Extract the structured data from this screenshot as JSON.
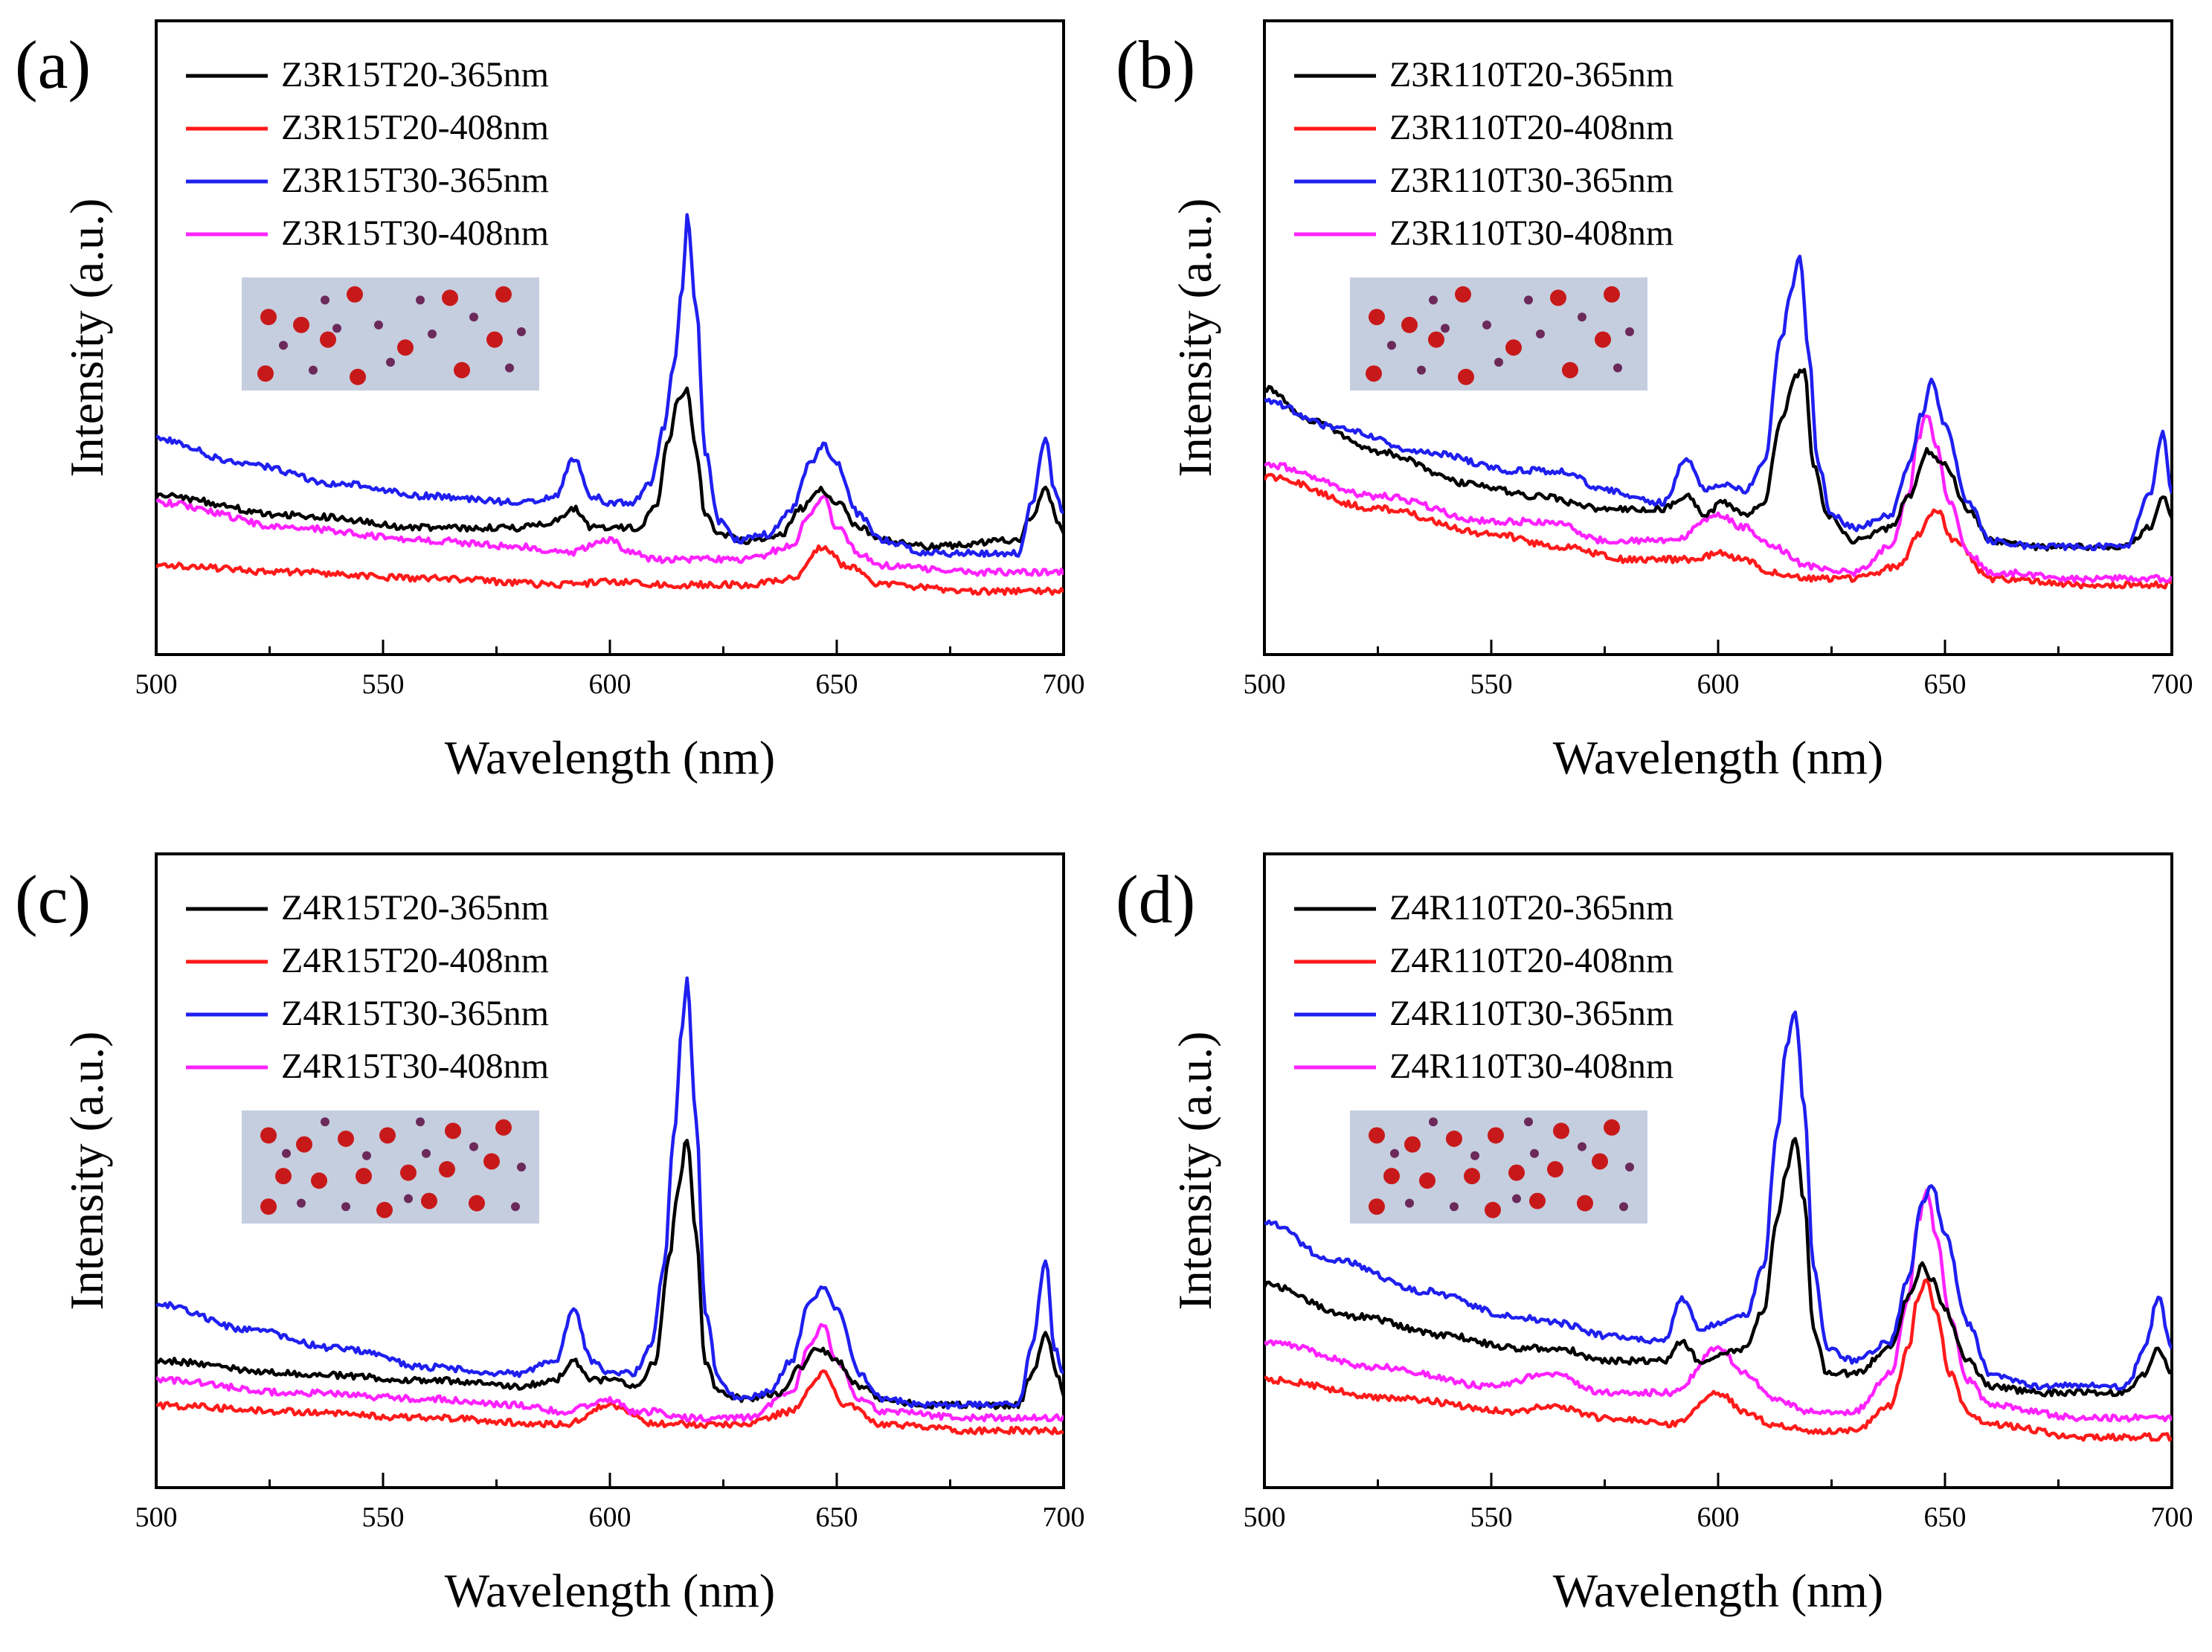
{
  "colors": {
    "black": "#000000",
    "red": "#ff1a1a",
    "blue": "#1f1ff0",
    "magenta": "#ff22ff",
    "inset_bg": "#c5cedf",
    "big_dot": "#c8191a",
    "small_dot": "#6b2a5a"
  },
  "chart_data": [
    {
      "type": "line",
      "panel_label": "(a)",
      "xlabel": "Wavelength (nm)",
      "ylabel": "Intensity (a.u.)",
      "xlim": [
        500,
        700
      ],
      "ylim": [
        0,
        1
      ],
      "xticks": [
        "500",
        "550",
        "600",
        "650",
        "700"
      ],
      "grid": false,
      "legend_position": "top-left",
      "inset": "particle schematic (sparse large particles)",
      "series": [
        {
          "name": "Z3R15T20-365nm",
          "color": "black",
          "x": [
            500,
            530,
            560,
            580,
            588,
            592,
            596,
            600,
            606,
            610,
            613,
            615,
            617,
            619,
            621,
            624,
            630,
            638,
            642,
            646,
            650,
            655,
            660,
            670,
            690,
            693,
            696,
            699,
            700
          ],
          "y": [
            0.25,
            0.22,
            0.2,
            0.2,
            0.21,
            0.23,
            0.2,
            0.2,
            0.2,
            0.23,
            0.34,
            0.4,
            0.42,
            0.32,
            0.22,
            0.19,
            0.18,
            0.19,
            0.23,
            0.26,
            0.24,
            0.2,
            0.18,
            0.17,
            0.18,
            0.22,
            0.26,
            0.21,
            0.19
          ]
        },
        {
          "name": "Z3R15T20-408nm",
          "color": "red",
          "x": [
            500,
            530,
            560,
            590,
            600,
            610,
            617,
            630,
            640,
            647,
            652,
            660,
            680,
            700
          ],
          "y": [
            0.14,
            0.13,
            0.12,
            0.11,
            0.115,
            0.11,
            0.11,
            0.11,
            0.12,
            0.17,
            0.14,
            0.11,
            0.1,
            0.1
          ]
        },
        {
          "name": "Z3R15T30-365nm",
          "color": "blue",
          "x": [
            500,
            520,
            540,
            560,
            580,
            588,
            592,
            596,
            600,
            605,
            609,
            612,
            614,
            616,
            617,
            619,
            621,
            624,
            628,
            635,
            640,
            644,
            647,
            650,
            655,
            660,
            670,
            690,
            693,
            696,
            698,
            700
          ],
          "y": [
            0.34,
            0.3,
            0.27,
            0.25,
            0.24,
            0.25,
            0.31,
            0.25,
            0.24,
            0.24,
            0.27,
            0.36,
            0.45,
            0.58,
            0.69,
            0.55,
            0.32,
            0.21,
            0.18,
            0.19,
            0.23,
            0.3,
            0.33,
            0.3,
            0.22,
            0.18,
            0.16,
            0.16,
            0.24,
            0.34,
            0.26,
            0.22
          ]
        },
        {
          "name": "Z3R15T30-408nm",
          "color": "magenta",
          "x": [
            500,
            530,
            560,
            580,
            590,
            600,
            605,
            610,
            617,
            630,
            640,
            644,
            647,
            650,
            655,
            660,
            680,
            700
          ],
          "y": [
            0.24,
            0.2,
            0.18,
            0.17,
            0.16,
            0.18,
            0.16,
            0.15,
            0.15,
            0.15,
            0.17,
            0.22,
            0.25,
            0.2,
            0.16,
            0.14,
            0.13,
            0.13
          ]
        }
      ]
    },
    {
      "type": "line",
      "panel_label": "(b)",
      "xlabel": "Wavelength (nm)",
      "ylabel": "Intensity (a.u.)",
      "xlim": [
        500,
        700
      ],
      "ylim": [
        0,
        1
      ],
      "xticks": [
        "500",
        "550",
        "600",
        "650",
        "700"
      ],
      "grid": false,
      "legend_position": "top-left",
      "inset": "particle schematic (sparse large particles)",
      "series": [
        {
          "name": "Z3R110T20-365nm",
          "color": "black",
          "x": [
            500,
            510,
            525,
            545,
            560,
            575,
            588,
            593,
            597,
            601,
            606,
            610,
            614,
            617,
            619,
            621,
            624,
            630,
            638,
            642,
            646,
            650,
            655,
            660,
            670,
            690,
            695,
            698,
            700
          ],
          "y": [
            0.42,
            0.37,
            0.32,
            0.27,
            0.25,
            0.23,
            0.23,
            0.25,
            0.22,
            0.24,
            0.22,
            0.24,
            0.37,
            0.44,
            0.45,
            0.3,
            0.22,
            0.18,
            0.2,
            0.25,
            0.32,
            0.3,
            0.23,
            0.18,
            0.17,
            0.17,
            0.2,
            0.25,
            0.22
          ]
        },
        {
          "name": "Z3R110T20-408nm",
          "color": "red",
          "x": [
            500,
            525,
            550,
            565,
            580,
            595,
            600,
            606,
            612,
            620,
            630,
            640,
            644,
            648,
            652,
            660,
            680,
            700
          ],
          "y": [
            0.28,
            0.23,
            0.19,
            0.17,
            0.15,
            0.15,
            0.16,
            0.15,
            0.13,
            0.12,
            0.12,
            0.14,
            0.19,
            0.23,
            0.18,
            0.12,
            0.11,
            0.11
          ]
        },
        {
          "name": "Z3R110T30-365nm",
          "color": "blue",
          "x": [
            500,
            515,
            535,
            555,
            565,
            575,
            588,
            593,
            597,
            601,
            606,
            610,
            614,
            616,
            618,
            620,
            622,
            625,
            630,
            638,
            642,
            645,
            647,
            650,
            655,
            660,
            670,
            690,
            695,
            698,
            700
          ],
          "y": [
            0.4,
            0.36,
            0.32,
            0.29,
            0.29,
            0.26,
            0.24,
            0.31,
            0.26,
            0.27,
            0.26,
            0.3,
            0.5,
            0.57,
            0.63,
            0.47,
            0.3,
            0.22,
            0.2,
            0.22,
            0.3,
            0.38,
            0.43,
            0.36,
            0.24,
            0.18,
            0.17,
            0.17,
            0.25,
            0.35,
            0.25
          ]
        },
        {
          "name": "Z3R110T30-408nm",
          "color": "magenta",
          "x": [
            500,
            525,
            550,
            563,
            575,
            590,
            600,
            606,
            612,
            620,
            630,
            638,
            642,
            644,
            646,
            648,
            651,
            655,
            660,
            680,
            700
          ],
          "y": [
            0.3,
            0.25,
            0.21,
            0.21,
            0.18,
            0.18,
            0.22,
            0.2,
            0.17,
            0.14,
            0.13,
            0.17,
            0.25,
            0.34,
            0.38,
            0.33,
            0.24,
            0.16,
            0.13,
            0.12,
            0.12
          ]
        }
      ]
    },
    {
      "type": "line",
      "panel_label": "(c)",
      "xlabel": "Wavelength (nm)",
      "ylabel": "Intensity (a.u.)",
      "xlim": [
        500,
        700
      ],
      "ylim": [
        0,
        1
      ],
      "xticks": [
        "500",
        "550",
        "600",
        "650",
        "700"
      ],
      "grid": false,
      "legend_position": "top-left",
      "inset": "particle schematic (dense large particles)",
      "series": [
        {
          "name": "Z4R15T20-365nm",
          "color": "black",
          "x": [
            500,
            530,
            560,
            580,
            588,
            592,
            596,
            600,
            606,
            610,
            613,
            615,
            617,
            619,
            621,
            624,
            630,
            638,
            642,
            646,
            650,
            655,
            660,
            670,
            690,
            693,
            696,
            699,
            700
          ],
          "y": [
            0.2,
            0.18,
            0.17,
            0.16,
            0.17,
            0.2,
            0.17,
            0.17,
            0.16,
            0.2,
            0.36,
            0.47,
            0.55,
            0.4,
            0.2,
            0.15,
            0.14,
            0.15,
            0.19,
            0.22,
            0.2,
            0.16,
            0.14,
            0.13,
            0.13,
            0.18,
            0.24,
            0.17,
            0.14
          ]
        },
        {
          "name": "Z4R15T20-408nm",
          "color": "red",
          "x": [
            500,
            530,
            560,
            590,
            600,
            610,
            617,
            630,
            640,
            647,
            652,
            660,
            680,
            700
          ],
          "y": [
            0.13,
            0.12,
            0.11,
            0.1,
            0.13,
            0.1,
            0.1,
            0.1,
            0.12,
            0.18,
            0.13,
            0.1,
            0.09,
            0.09
          ]
        },
        {
          "name": "Z4R15T30-365nm",
          "color": "blue",
          "x": [
            500,
            520,
            540,
            560,
            580,
            588,
            592,
            596,
            600,
            605,
            609,
            612,
            614,
            616,
            617,
            619,
            621,
            624,
            628,
            635,
            640,
            644,
            647,
            650,
            655,
            660,
            670,
            690,
            693,
            696,
            698,
            700
          ],
          "y": [
            0.29,
            0.25,
            0.22,
            0.19,
            0.18,
            0.2,
            0.28,
            0.2,
            0.18,
            0.18,
            0.22,
            0.35,
            0.55,
            0.73,
            0.8,
            0.58,
            0.28,
            0.17,
            0.14,
            0.15,
            0.2,
            0.29,
            0.32,
            0.28,
            0.18,
            0.14,
            0.13,
            0.13,
            0.22,
            0.36,
            0.22,
            0.18
          ]
        },
        {
          "name": "Z4R15T30-408nm",
          "color": "magenta",
          "x": [
            500,
            530,
            560,
            580,
            590,
            600,
            605,
            610,
            617,
            630,
            640,
            644,
            647,
            650,
            655,
            660,
            680,
            700
          ],
          "y": [
            0.17,
            0.15,
            0.14,
            0.13,
            0.12,
            0.14,
            0.12,
            0.12,
            0.11,
            0.11,
            0.15,
            0.22,
            0.26,
            0.2,
            0.14,
            0.12,
            0.11,
            0.11
          ]
        }
      ]
    },
    {
      "type": "line",
      "panel_label": "(d)",
      "xlabel": "Wavelength (nm)",
      "ylabel": "Intensity (a.u.)",
      "xlim": [
        500,
        700
      ],
      "ylim": [
        0,
        1
      ],
      "xticks": [
        "500",
        "550",
        "600",
        "650",
        "700"
      ],
      "grid": false,
      "legend_position": "top-left",
      "inset": "particle schematic (dense large particles)",
      "series": [
        {
          "name": "Z4R110T20-365nm",
          "color": "black",
          "x": [
            500,
            520,
            540,
            555,
            565,
            575,
            588,
            592,
            596,
            600,
            606,
            610,
            613,
            615,
            617,
            619,
            621,
            624,
            630,
            638,
            642,
            645,
            647,
            650,
            655,
            660,
            670,
            690,
            694,
            697,
            700
          ],
          "y": [
            0.32,
            0.27,
            0.24,
            0.22,
            0.22,
            0.2,
            0.2,
            0.23,
            0.2,
            0.21,
            0.22,
            0.28,
            0.42,
            0.5,
            0.55,
            0.45,
            0.25,
            0.18,
            0.18,
            0.22,
            0.3,
            0.35,
            0.33,
            0.28,
            0.2,
            0.16,
            0.15,
            0.15,
            0.18,
            0.22,
            0.18
          ]
        },
        {
          "name": "Z4R110T20-408nm",
          "color": "red",
          "x": [
            500,
            530,
            555,
            563,
            575,
            590,
            600,
            606,
            612,
            620,
            630,
            638,
            642,
            644,
            646,
            648,
            651,
            655,
            660,
            680,
            700
          ],
          "y": [
            0.17,
            0.14,
            0.12,
            0.13,
            0.11,
            0.1,
            0.15,
            0.12,
            0.1,
            0.09,
            0.09,
            0.13,
            0.22,
            0.3,
            0.33,
            0.28,
            0.18,
            0.12,
            0.1,
            0.08,
            0.08
          ]
        },
        {
          "name": "Z4R110T30-365nm",
          "color": "blue",
          "x": [
            500,
            515,
            535,
            555,
            565,
            575,
            588,
            592,
            596,
            600,
            606,
            610,
            613,
            615,
            617,
            619,
            621,
            624,
            630,
            638,
            642,
            645,
            647,
            650,
            655,
            660,
            670,
            690,
            694,
            697,
            700
          ],
          "y": [
            0.42,
            0.36,
            0.31,
            0.27,
            0.26,
            0.24,
            0.23,
            0.3,
            0.25,
            0.26,
            0.27,
            0.35,
            0.56,
            0.7,
            0.75,
            0.6,
            0.35,
            0.22,
            0.2,
            0.23,
            0.33,
            0.45,
            0.48,
            0.4,
            0.26,
            0.18,
            0.16,
            0.16,
            0.22,
            0.3,
            0.22
          ]
        },
        {
          "name": "Z4R110T30-408nm",
          "color": "magenta",
          "x": [
            500,
            525,
            550,
            563,
            575,
            590,
            600,
            606,
            612,
            620,
            630,
            638,
            642,
            644,
            646,
            648,
            651,
            655,
            660,
            680,
            700
          ],
          "y": [
            0.23,
            0.19,
            0.16,
            0.18,
            0.15,
            0.15,
            0.22,
            0.18,
            0.14,
            0.12,
            0.12,
            0.18,
            0.3,
            0.42,
            0.47,
            0.4,
            0.27,
            0.17,
            0.13,
            0.11,
            0.11
          ]
        }
      ]
    }
  ]
}
